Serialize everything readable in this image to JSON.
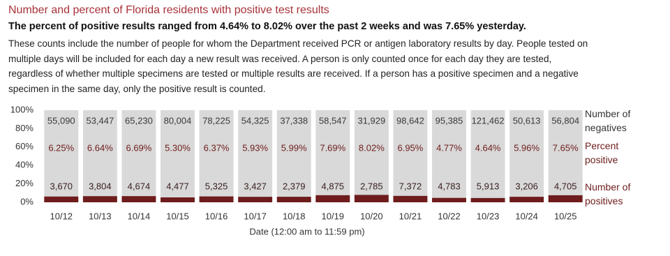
{
  "chart_data": {
    "type": "bar",
    "title": "Number and percent of Florida residents with positive test results",
    "subtitle": "The percent of positive results ranged from 4.64% to 8.02% over the past 2 weeks and was 7.65% yesterday.",
    "description": "These counts include the number of people for whom the Department received PCR or antigen laboratory results by day. People tested on multiple days will be included for each day a new result was received. A person is only counted once for each day they are tested, regardless of whether multiple specimens are tested or multiple results are received. If a person has a positive specimen and a negative specimen in the same day, only the positive result is counted.",
    "xlabel": "Date (12:00 am to 11:59 pm)",
    "categories": [
      "10/12",
      "10/13",
      "10/14",
      "10/15",
      "10/16",
      "10/17",
      "10/18",
      "10/19",
      "10/20",
      "10/21",
      "10/22",
      "10/23",
      "10/24",
      "10/25"
    ],
    "ylim": [
      0,
      100
    ],
    "yticks": [
      {
        "value": 0,
        "label": "0%"
      },
      {
        "value": 20,
        "label": "20%"
      },
      {
        "value": 40,
        "label": "40%"
      },
      {
        "value": 60,
        "label": "60%"
      },
      {
        "value": 80,
        "label": "80%"
      },
      {
        "value": 100,
        "label": "100%"
      }
    ],
    "track_color": "#d9d9d9",
    "series": [
      {
        "name": "Percent positive",
        "color": "#6e1c1c",
        "values": [
          6.25,
          6.64,
          6.69,
          5.3,
          6.37,
          5.93,
          5.99,
          7.69,
          8.02,
          6.95,
          4.77,
          4.64,
          5.96,
          7.65
        ],
        "value_labels": [
          "6.25%",
          "6.64%",
          "6.69%",
          "5.30%",
          "6.37%",
          "5.93%",
          "5.99%",
          "7.69%",
          "8.02%",
          "6.95%",
          "4.77%",
          "4.64%",
          "5.96%",
          "7.65%"
        ]
      }
    ],
    "count_rows": [
      {
        "name": "Number of negatives",
        "color": "#3a3a3a",
        "values": [
          55090,
          53447,
          65230,
          80004,
          78225,
          54325,
          37338,
          58547,
          31929,
          98642,
          95385,
          121462,
          50613,
          56804
        ],
        "value_labels": [
          "55,090",
          "53,447",
          "65,230",
          "80,004",
          "78,225",
          "54,325",
          "37,338",
          "58,547",
          "31,929",
          "98,642",
          "95,385",
          "121,462",
          "50,613",
          "56,804"
        ]
      },
      {
        "name": "Number of positives",
        "color": "#3a2020",
        "values": [
          3670,
          3804,
          4674,
          4477,
          5325,
          3427,
          2379,
          4875,
          2785,
          7372,
          4783,
          5913,
          3206,
          4705
        ],
        "value_labels": [
          "3,670",
          "3,804",
          "4,674",
          "4,477",
          "5,325",
          "3,427",
          "2,379",
          "4,875",
          "2,785",
          "7,372",
          "4,783",
          "5,913",
          "3,206",
          "4,705"
        ]
      }
    ]
  }
}
